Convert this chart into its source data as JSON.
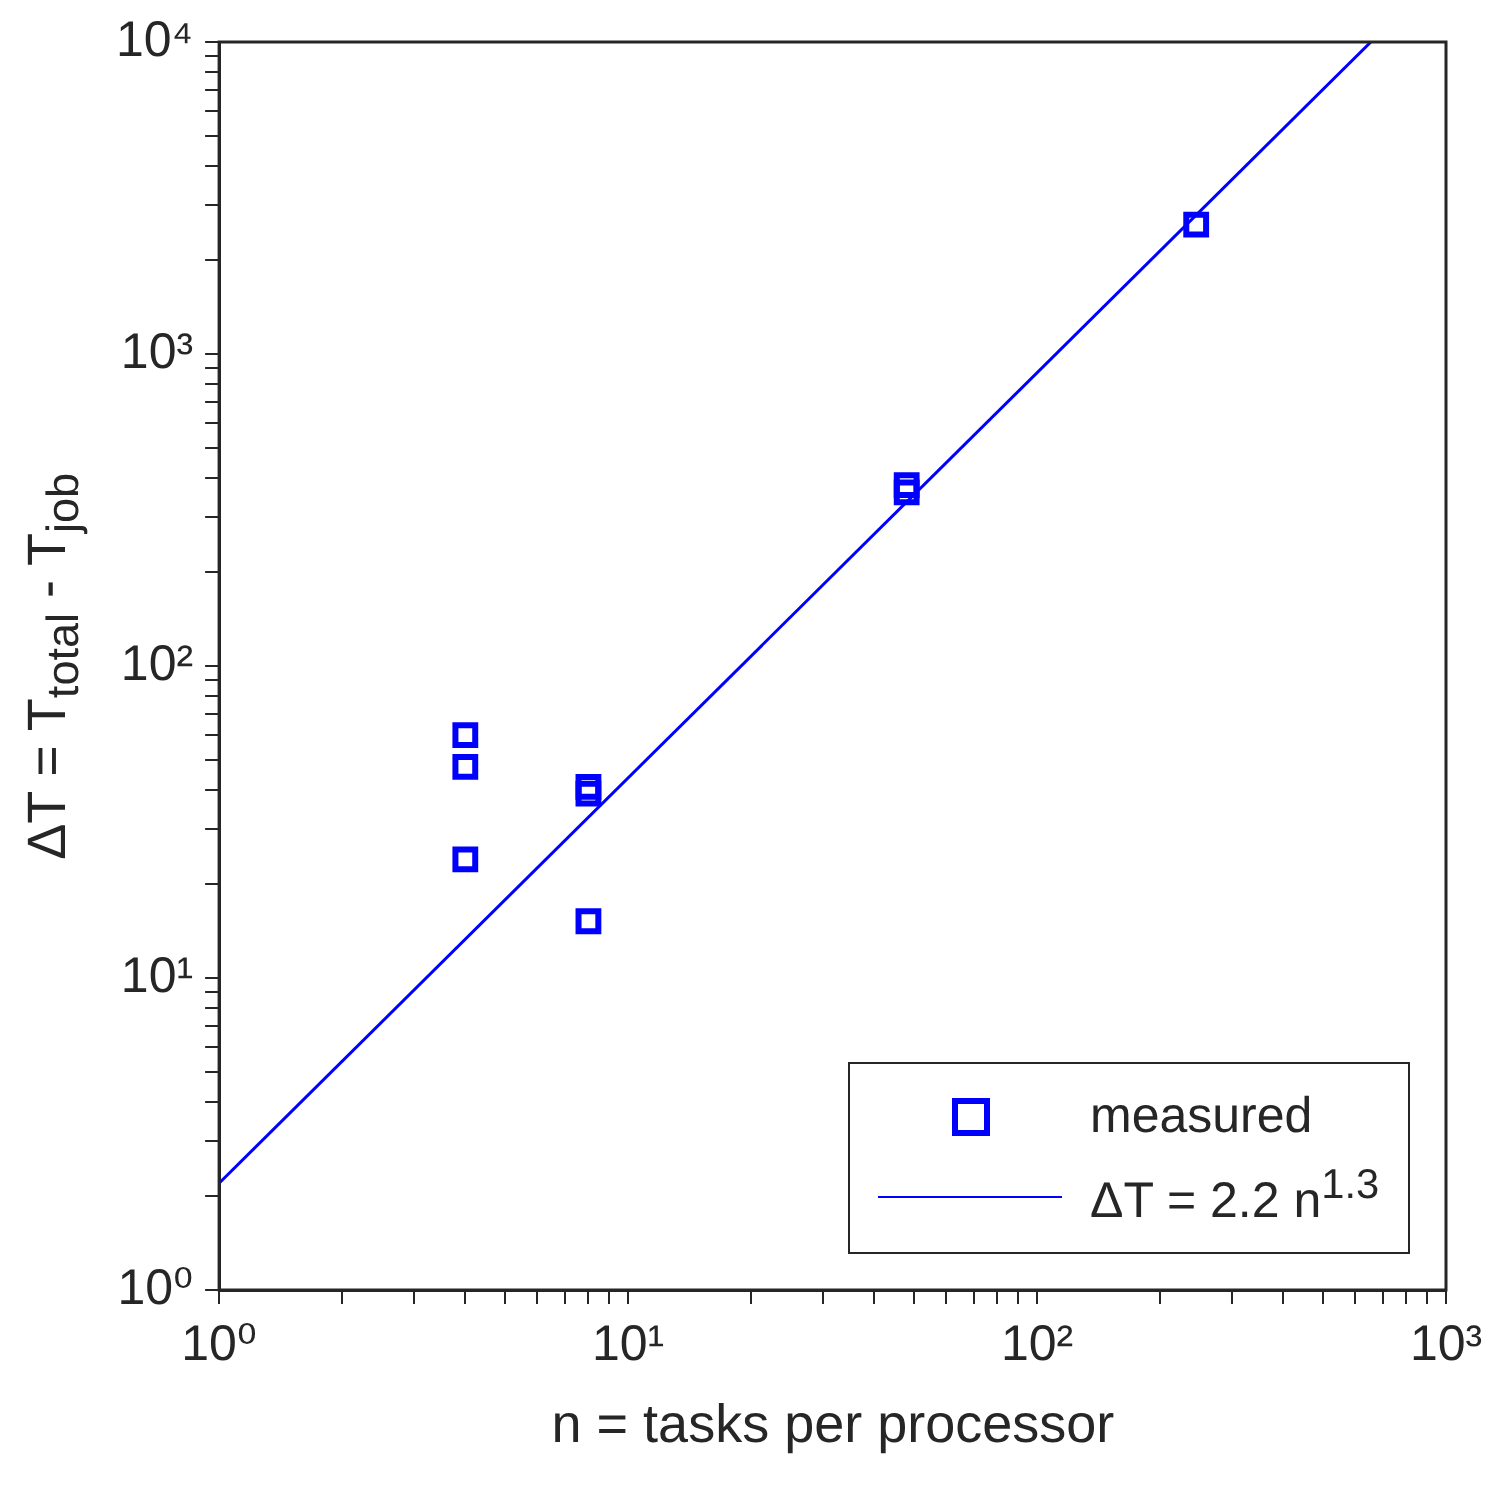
{
  "chart_data": {
    "type": "scatter",
    "xlabel": "n = tasks per processor",
    "ylabel": "ΔT = T$_{total}$ - T$_{job}$",
    "log": "xy",
    "grid": false,
    "legend": "bottom right",
    "xlim": [
      1,
      1000
    ],
    "xticks": [
      {
        "value": 1,
        "label": "10⁰"
      },
      {
        "value": 2,
        "label": null
      },
      {
        "value": 3,
        "label": null
      },
      {
        "value": 4,
        "label": null
      },
      {
        "value": 5,
        "label": null
      },
      {
        "value": 6,
        "label": null
      },
      {
        "value": 7,
        "label": null
      },
      {
        "value": 8,
        "label": null
      },
      {
        "value": 9,
        "label": null
      },
      {
        "value": 10,
        "label": "10¹"
      },
      {
        "value": 20,
        "label": null
      },
      {
        "value": 30,
        "label": null
      },
      {
        "value": 40,
        "label": null
      },
      {
        "value": 50,
        "label": null
      },
      {
        "value": 60,
        "label": null
      },
      {
        "value": 70,
        "label": null
      },
      {
        "value": 80,
        "label": null
      },
      {
        "value": 90,
        "label": null
      },
      {
        "value": 100,
        "label": "10²"
      },
      {
        "value": 200,
        "label": null
      },
      {
        "value": 300,
        "label": null
      },
      {
        "value": 400,
        "label": null
      },
      {
        "value": 500,
        "label": null
      },
      {
        "value": 600,
        "label": null
      },
      {
        "value": 700,
        "label": null
      },
      {
        "value": 800,
        "label": null
      },
      {
        "value": 900,
        "label": null
      },
      {
        "value": 1000,
        "label": "10³"
      }
    ],
    "ylim": [
      1,
      10000
    ],
    "yticks": [
      {
        "value": 1,
        "label": "10⁰"
      },
      {
        "value": 2,
        "label": null
      },
      {
        "value": 3,
        "label": null
      },
      {
        "value": 4,
        "label": null
      },
      {
        "value": 5,
        "label": null
      },
      {
        "value": 6,
        "label": null
      },
      {
        "value": 7,
        "label": null
      },
      {
        "value": 8,
        "label": null
      },
      {
        "value": 9,
        "label": null
      },
      {
        "value": 10,
        "label": "10¹"
      },
      {
        "value": 20,
        "label": null
      },
      {
        "value": 30,
        "label": null
      },
      {
        "value": 40,
        "label": null
      },
      {
        "value": 50,
        "label": null
      },
      {
        "value": 60,
        "label": null
      },
      {
        "value": 70,
        "label": null
      },
      {
        "value": 80,
        "label": null
      },
      {
        "value": 90,
        "label": null
      },
      {
        "value": 100,
        "label": "10²"
      },
      {
        "value": 200,
        "label": null
      },
      {
        "value": 300,
        "label": null
      },
      {
        "value": 400,
        "label": null
      },
      {
        "value": 500,
        "label": null
      },
      {
        "value": 600,
        "label": null
      },
      {
        "value": 700,
        "label": null
      },
      {
        "value": 800,
        "label": null
      },
      {
        "value": 900,
        "label": null
      },
      {
        "value": 1000,
        "label": "10³"
      },
      {
        "value": 2000,
        "label": null
      },
      {
        "value": 3000,
        "label": null
      },
      {
        "value": 4000,
        "label": null
      },
      {
        "value": 5000,
        "label": null
      },
      {
        "value": 6000,
        "label": null
      },
      {
        "value": 7000,
        "label": null
      },
      {
        "value": 8000,
        "label": null
      },
      {
        "value": 9000,
        "label": null
      },
      {
        "value": 10000,
        "label": "10⁴"
      }
    ],
    "series": [
      {
        "name": "measured",
        "marker": "square",
        "color": "#0000ff",
        "x": [
          4,
          4,
          4,
          8,
          8,
          8,
          48,
          48,
          245
        ],
        "values": [
          60,
          47.5,
          24,
          41,
          39,
          15.2,
          380,
          360,
          2600
        ]
      },
      {
        "name": "ΔT = 2.2 n$^{1.3}$",
        "type": "line",
        "marker": "none",
        "color": "#0000ff",
        "x": [
          1,
          655
        ],
        "values": [
          2.2,
          10000
        ]
      }
    ]
  }
}
